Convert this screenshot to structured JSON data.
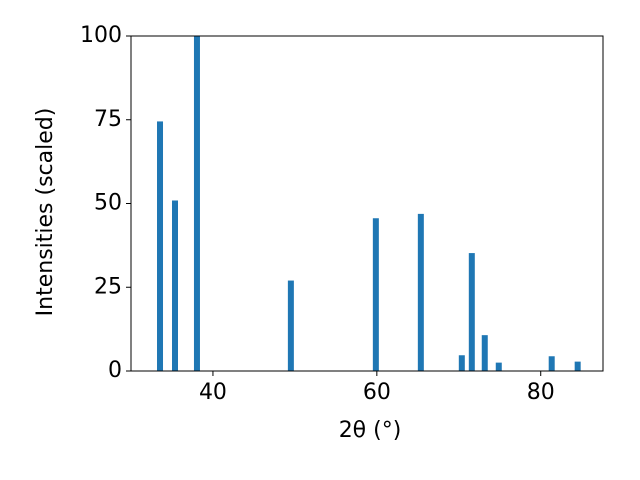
{
  "chart_data": {
    "type": "bar",
    "xlabel": "2θ (°)",
    "ylabel": "Intensities (scaled)",
    "x": [
      33.54,
      35.37,
      38.05,
      49.51,
      59.88,
      65.37,
      70.37,
      71.59,
      73.17,
      74.88,
      81.34,
      84.51
    ],
    "values": [
      74.5,
      50.9,
      100,
      27.0,
      45.6,
      46.9,
      4.7,
      35.2,
      10.7,
      2.5,
      4.4,
      2.8
    ],
    "color": "#1f77b4",
    "xlim": [
      30,
      87.6
    ],
    "xticks": [
      40,
      60,
      80
    ],
    "ylim": [
      0,
      100
    ],
    "yticks": [
      0,
      25,
      50,
      75,
      100
    ]
  }
}
